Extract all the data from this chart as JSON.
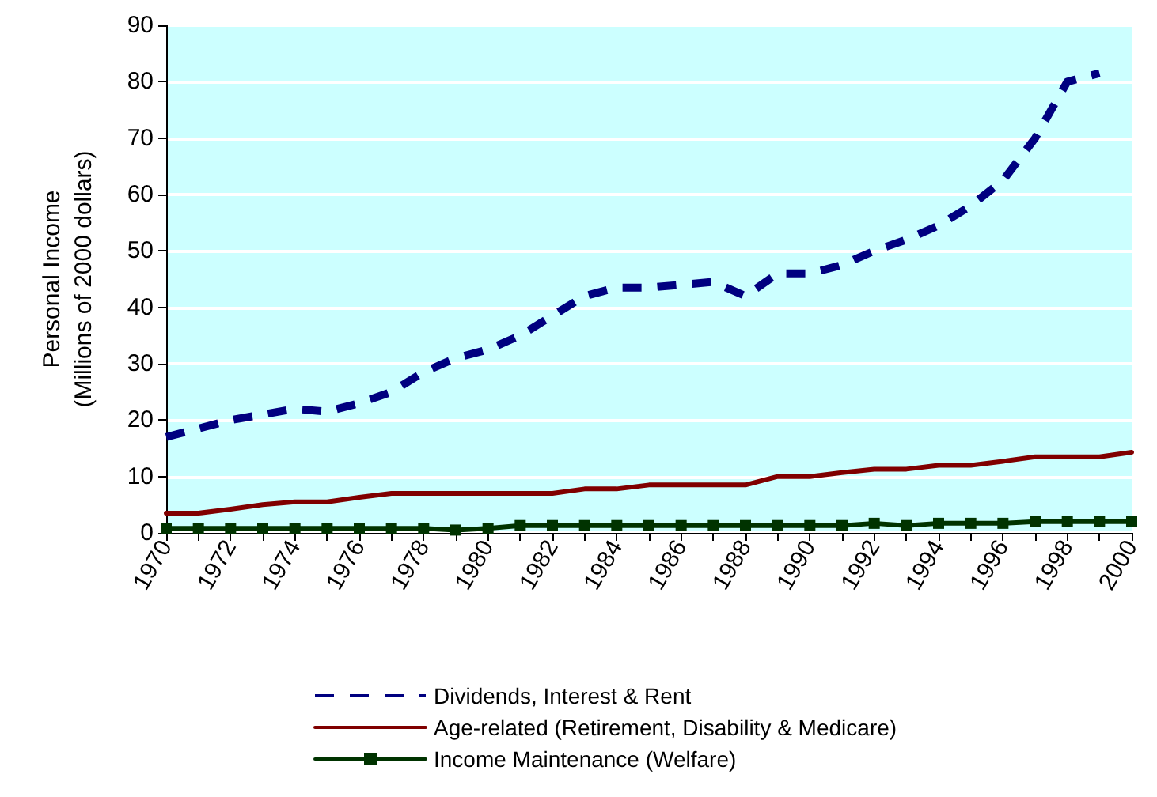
{
  "chart_data": {
    "type": "line",
    "ylabel": "Personal Income\n(Millions of 2000 dollars)",
    "categories": [
      "1970",
      null,
      "1972",
      null,
      "1974",
      null,
      "1976",
      null,
      "1978",
      null,
      "1980",
      null,
      "1982",
      null,
      "1984",
      null,
      "1986",
      null,
      "1988",
      null,
      "1990",
      null,
      "1992",
      null,
      "1994",
      null,
      "1996",
      null,
      "1998",
      null,
      "2000"
    ],
    "ylim": [
      0,
      90
    ],
    "yticks": [
      0,
      10,
      20,
      30,
      40,
      50,
      60,
      70,
      80,
      90
    ],
    "grid": "y",
    "legend": "bottom",
    "series": [
      {
        "name": "Dividends, Interest & Rent",
        "color": "#000080",
        "line_style": "dashed",
        "marker": "none",
        "values": [
          17,
          18.5,
          20,
          21,
          22,
          21.5,
          23,
          25,
          28.5,
          31,
          32.5,
          35,
          38.5,
          42,
          43.5,
          43.5,
          44,
          44.5,
          42,
          46,
          46,
          47.5,
          50,
          52,
          54.5,
          58,
          62.5,
          70,
          80,
          81.5,
          null
        ]
      },
      {
        "name": "Age-related (Retirement, Disability & Medicare)",
        "color": "#800000",
        "line_style": "solid",
        "marker": "none",
        "values": [
          3.5,
          3.5,
          4.2,
          5,
          5.5,
          5.5,
          6.3,
          7,
          7,
          7,
          7,
          7,
          7,
          7.8,
          7.8,
          8.5,
          8.5,
          8.5,
          8.5,
          10,
          10,
          10.7,
          11.3,
          11.3,
          12,
          12,
          12.7,
          13.5,
          13.5,
          13.5,
          14.3
        ]
      },
      {
        "name": "Income Maintenance (Welfare)",
        "color": "#003300",
        "line_style": "solid",
        "marker": "square",
        "values": [
          0.8,
          0.8,
          0.8,
          0.8,
          0.8,
          0.8,
          0.8,
          0.8,
          0.8,
          0.5,
          0.8,
          1.3,
          1.3,
          1.3,
          1.3,
          1.3,
          1.3,
          1.3,
          1.3,
          1.3,
          1.3,
          1.3,
          1.7,
          1.3,
          1.7,
          1.7,
          1.7,
          2,
          2,
          2,
          2
        ]
      }
    ]
  }
}
